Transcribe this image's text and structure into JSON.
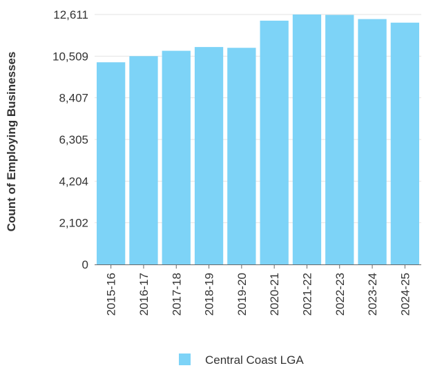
{
  "chart_data": {
    "type": "bar",
    "ylabel": "Count of Employing Businesses",
    "categories": [
      "2015-16",
      "2016-17",
      "2017-18",
      "2018-19",
      "2019-20",
      "2020-21",
      "2021-22",
      "2022-23",
      "2023-24",
      "2024-25"
    ],
    "series": [
      {
        "name": "Central Coast LGA",
        "color": "#7dd3f7",
        "values": [
          10200,
          10510,
          10780,
          10970,
          10930,
          12300,
          12611,
          12590,
          12380,
          12200
        ]
      }
    ],
    "y_ticks": [
      "0",
      "2,102",
      "4,204",
      "6,305",
      "8,407",
      "10,509",
      "12,611"
    ],
    "y_tick_values": [
      0,
      2102,
      4204,
      6305,
      8407,
      10509,
      12611
    ],
    "ylim": [
      0,
      12611
    ],
    "grid": true,
    "legend_position": "bottom-center"
  }
}
